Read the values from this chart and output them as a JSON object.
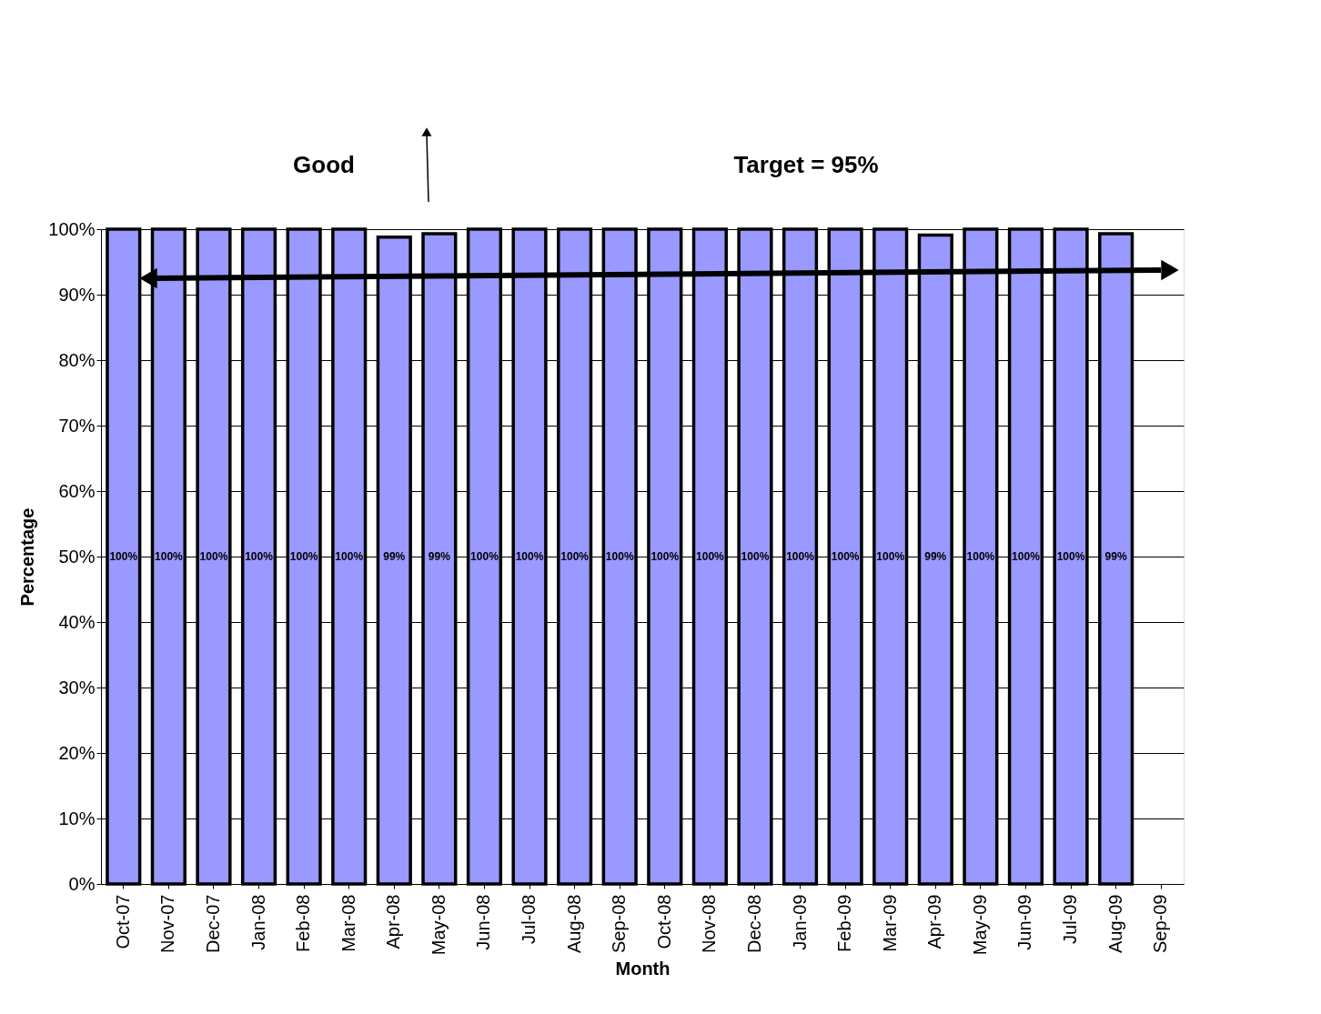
{
  "chart_data": {
    "type": "bar",
    "xlabel": "Month",
    "ylabel": "Percentage",
    "annotations": [
      "Good",
      "Target = 95%"
    ],
    "categories": [
      "Oct-07",
      "Nov-07",
      "Dec-07",
      "Jan-08",
      "Feb-08",
      "Mar-08",
      "Apr-08",
      "May-08",
      "Jun-08",
      "Jul-08",
      "Aug-08",
      "Sep-08",
      "Oct-08",
      "Nov-08",
      "Dec-08",
      "Jan-09",
      "Feb-09",
      "Mar-09",
      "Apr-09",
      "May-09",
      "Jun-09",
      "Jul-09",
      "Aug-09",
      "Sep-09"
    ],
    "values": [
      100,
      100,
      100,
      100,
      100,
      100,
      98.8,
      99.3,
      100,
      100,
      100,
      100,
      100,
      100,
      100,
      100,
      100,
      100,
      99.1,
      100,
      100,
      100,
      99.3,
      null
    ],
    "value_labels": [
      "100%",
      "100%",
      "100%",
      "100%",
      "100%",
      "100%",
      "99%",
      "99%",
      "100%",
      "100%",
      "100%",
      "100%",
      "100%",
      "100%",
      "100%",
      "100%",
      "100%",
      "100%",
      "99%",
      "100%",
      "100%",
      "100%",
      "99%",
      null
    ],
    "color": "#9999ff",
    "ylim": [
      0,
      100
    ],
    "yticks": [
      {
        "value": 0,
        "label": "0%"
      },
      {
        "value": 10,
        "label": "10%"
      },
      {
        "value": 20,
        "label": "20%"
      },
      {
        "value": 30,
        "label": "30%"
      },
      {
        "value": 40,
        "label": "40%"
      },
      {
        "value": 50,
        "label": "50%"
      },
      {
        "value": 60,
        "label": "60%"
      },
      {
        "value": 70,
        "label": "70%"
      },
      {
        "value": 80,
        "label": "80%"
      },
      {
        "value": 90,
        "label": "90%"
      },
      {
        "value": 100,
        "label": "100%"
      }
    ],
    "grid": "y"
  }
}
